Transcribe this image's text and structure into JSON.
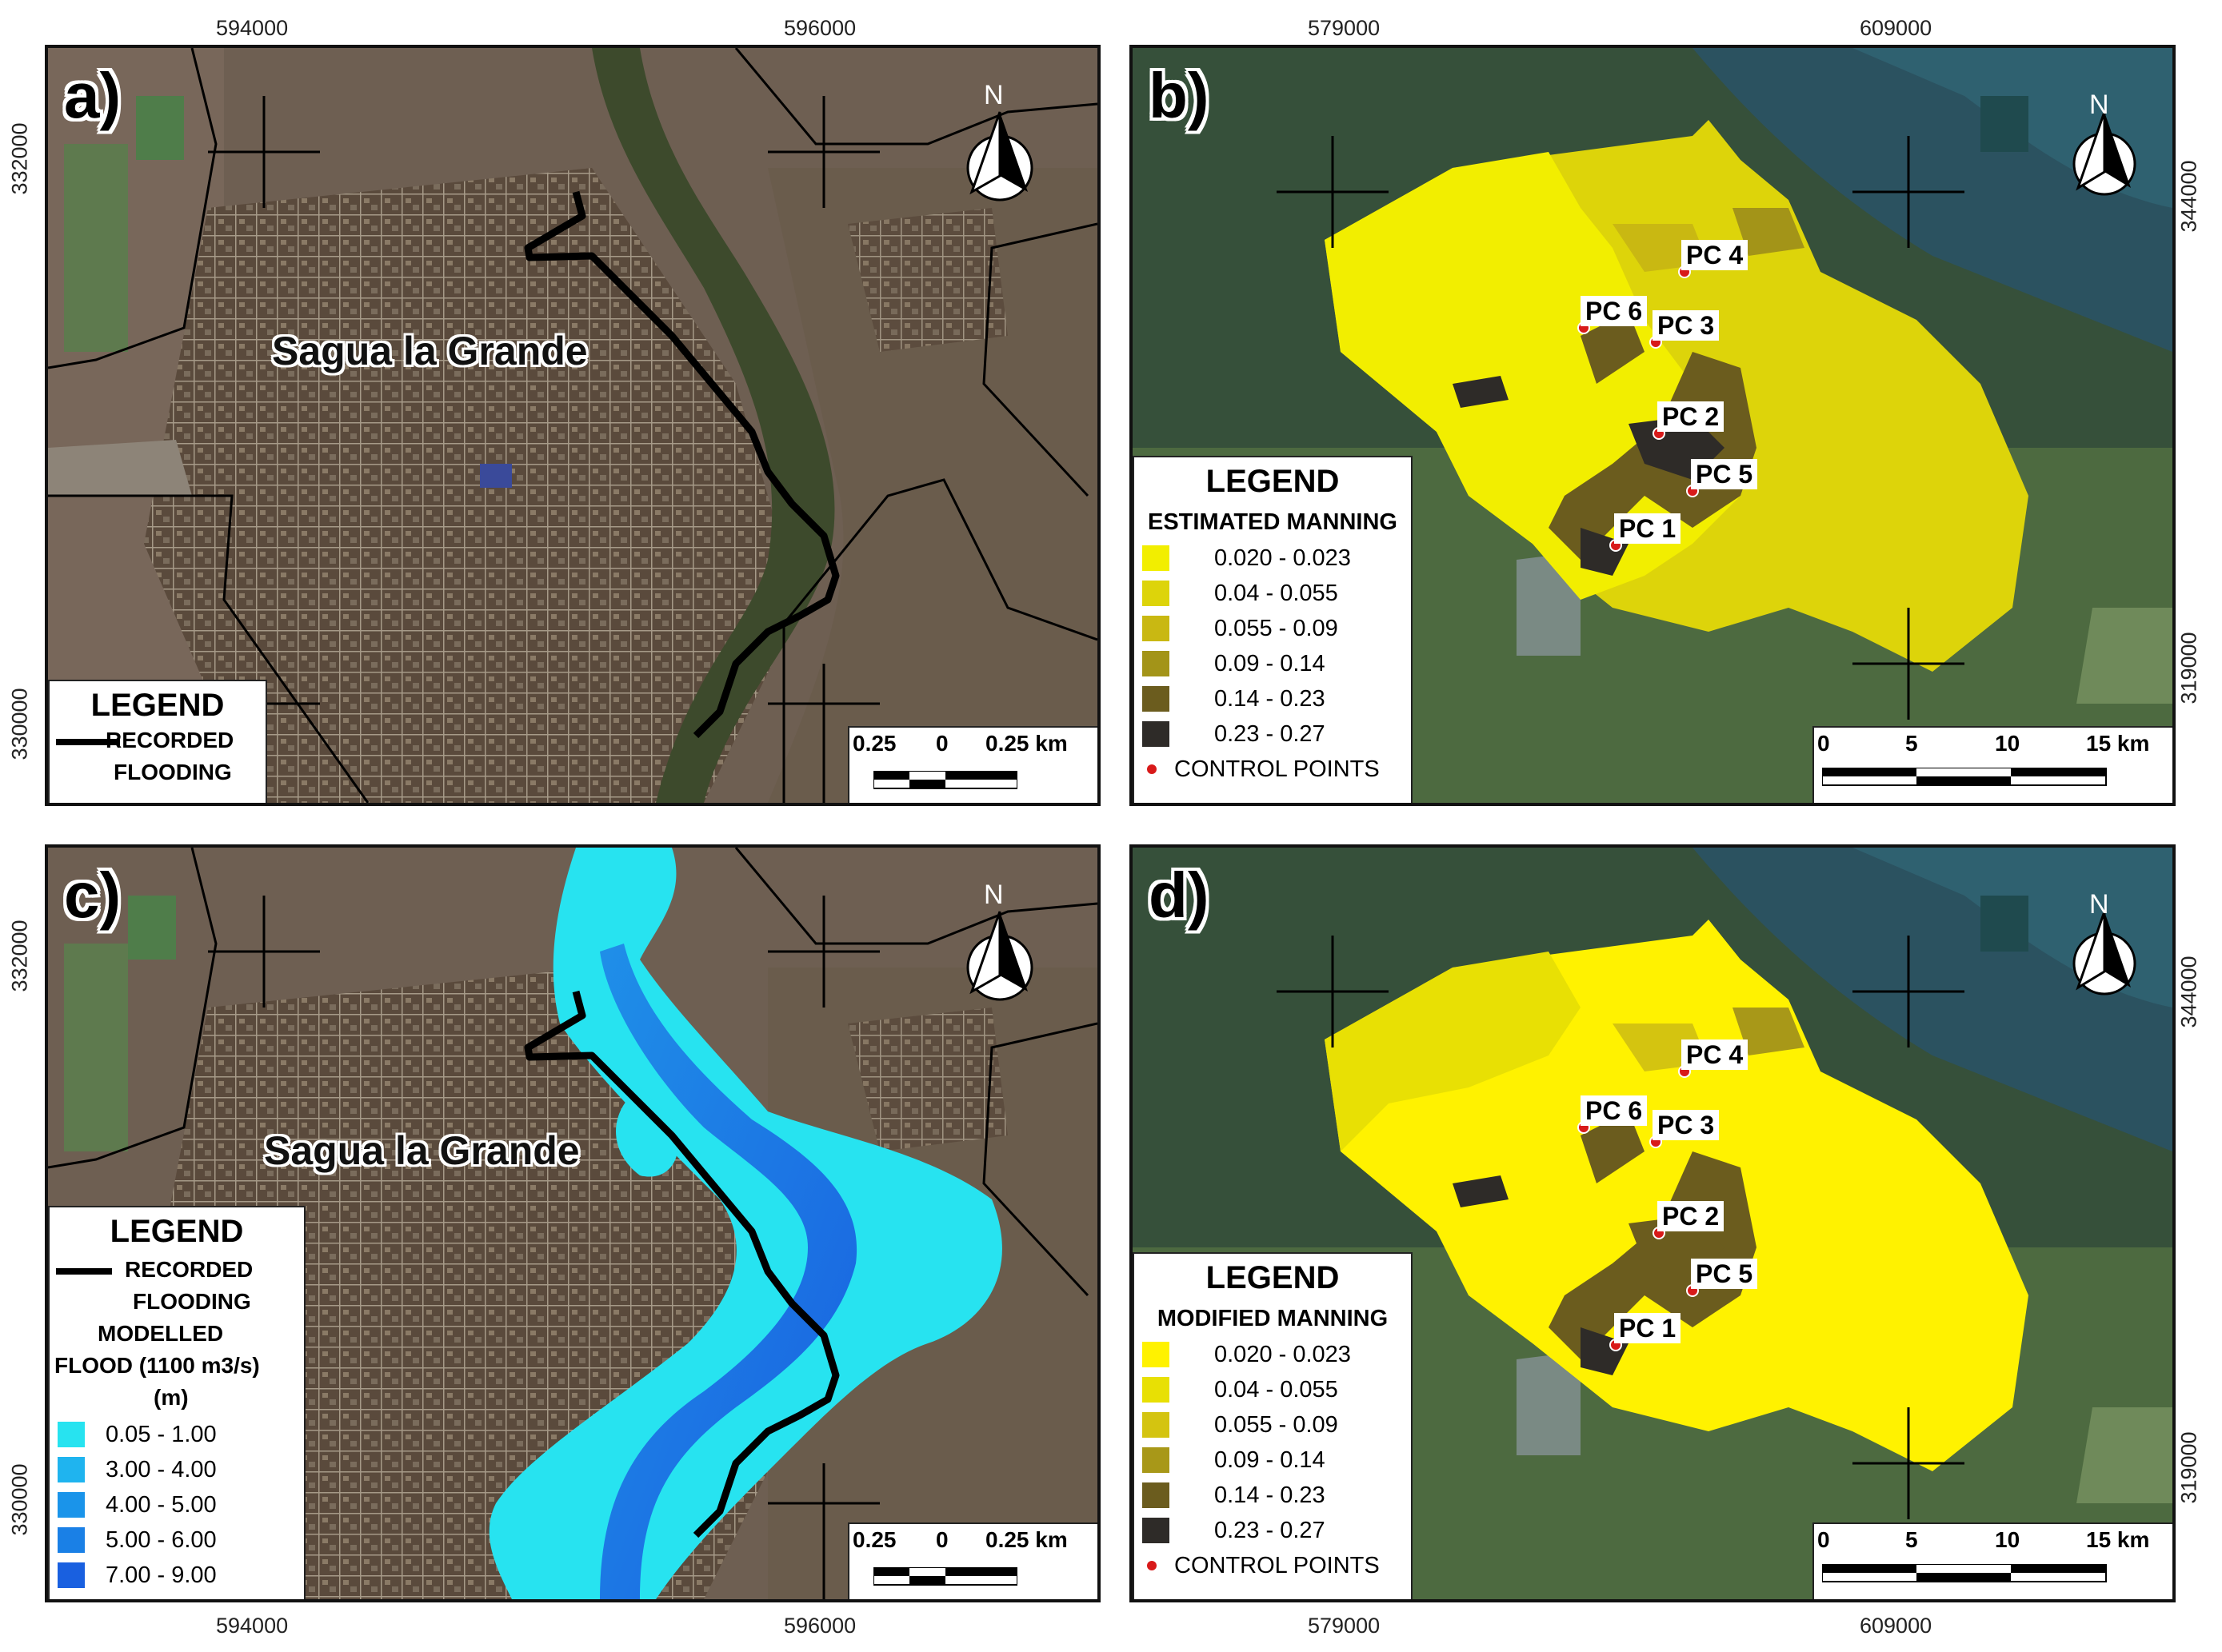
{
  "panels": {
    "a": {
      "label": "a)",
      "town": "Sagua la Grande",
      "legend": {
        "title": "LEGEND",
        "recorded_1": "RECORDED",
        "recorded_2": "FLOODING"
      },
      "scale": {
        "left": "0.25",
        "mid": "0",
        "right": "0.25 km"
      },
      "north": "N"
    },
    "b": {
      "label": "b)",
      "legend": {
        "title": "LEGEND",
        "subtitle": "ESTIMATED MANNING",
        "classes": [
          {
            "label": "0.020 - 0.023",
            "color": "#f2ee00"
          },
          {
            "label": "0.04 - 0.055",
            "color": "#ddd40a"
          },
          {
            "label": "0.055 - 0.09",
            "color": "#c9b812"
          },
          {
            "label": "0.09 - 0.14",
            "color": "#a39418"
          },
          {
            "label": "0.14 - 0.23",
            "color": "#6b5c1e"
          },
          {
            "label": "0.23 - 0.27",
            "color": "#2e2b28"
          }
        ],
        "control": "CONTROL POINTS"
      },
      "points": [
        "PC 4",
        "PC 6",
        "PC 3",
        "PC 2",
        "PC 5",
        "PC 1"
      ],
      "scale": {
        "t0": "0",
        "t1": "5",
        "t2": "10",
        "t3": "15 km"
      },
      "north": "N"
    },
    "c": {
      "label": "c)",
      "town": "Sagua la Grande",
      "legend": {
        "title": "LEGEND",
        "recorded_1": "RECORDED",
        "recorded_2": "FLOODING",
        "modelled_1": "MODELLED",
        "modelled_2": "FLOOD (1100 m3/s)",
        "modelled_3": "(m)",
        "classes": [
          {
            "label": "0.05 - 1.00",
            "color": "#27e3f0"
          },
          {
            "label": "3.00 - 4.00",
            "color": "#1fb4ef"
          },
          {
            "label": "4.00 - 5.00",
            "color": "#1a94ea"
          },
          {
            "label": "5.00 - 6.00",
            "color": "#1a80e6"
          },
          {
            "label": "7.00 - 9.00",
            "color": "#1960e0"
          }
        ]
      },
      "scale": {
        "left": "0.25",
        "mid": "0",
        "right": "0.25 km"
      },
      "north": "N"
    },
    "d": {
      "label": "d)",
      "legend": {
        "title": "LEGEND",
        "subtitle": "MODIFIED MANNING",
        "classes": [
          {
            "label": "0.020 - 0.023",
            "color": "#fff200"
          },
          {
            "label": "0.04 - 0.055",
            "color": "#e8e004"
          },
          {
            "label": "0.055 - 0.09",
            "color": "#d4c410"
          },
          {
            "label": "0.09 - 0.14",
            "color": "#a89818"
          },
          {
            "label": "0.14 - 0.23",
            "color": "#6b5c1e"
          },
          {
            "label": "0.23 - 0.27",
            "color": "#2e2b28"
          }
        ],
        "control": "CONTROL POINTS"
      },
      "points": [
        "PC 4",
        "PC 6",
        "PC 3",
        "PC 2",
        "PC 5",
        "PC 1"
      ],
      "scale": {
        "t0": "0",
        "t1": "5",
        "t2": "10",
        "t3": "15 km"
      },
      "north": "N"
    }
  },
  "ticks": {
    "left_x": [
      "594000",
      "596000"
    ],
    "left_y": [
      "332000",
      "330000"
    ],
    "right_x": [
      "579000",
      "609000"
    ],
    "right_y": [
      "344000",
      "319000"
    ]
  }
}
